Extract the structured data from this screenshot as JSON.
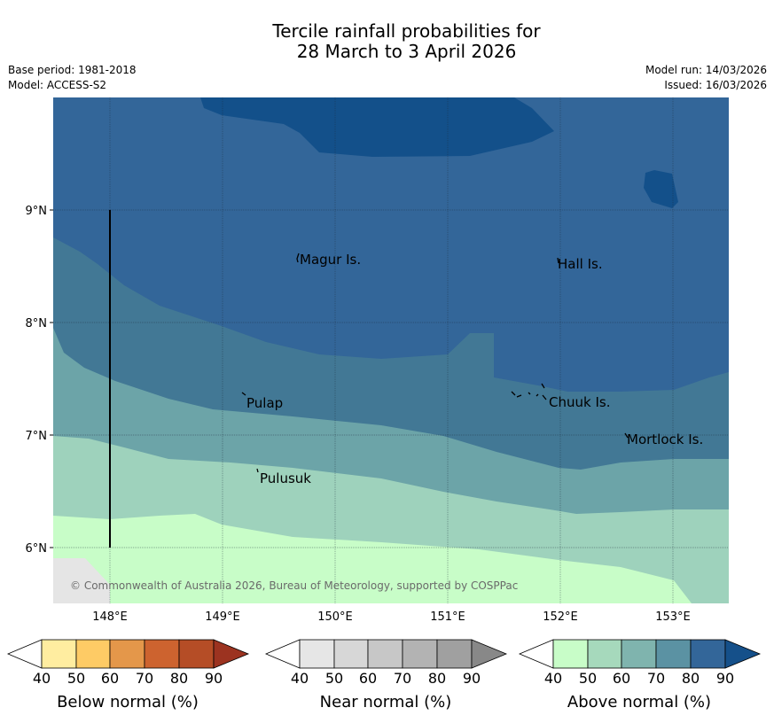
{
  "title": {
    "line1": "Tercile rainfall probabilities for",
    "line2": "28 March to 3 April 2026"
  },
  "meta": {
    "base_period": "Base period: 1981-2018",
    "model": "Model: ACCESS-S2",
    "model_run": "Model run: 14/03/2026",
    "issued": "Issued: 16/03/2026"
  },
  "map": {
    "lat_labels": [
      "9°N",
      "8°N",
      "7°N",
      "6°N"
    ],
    "lon_labels": [
      "148°E",
      "149°E",
      "150°E",
      "151°E",
      "152°E",
      "153°E"
    ],
    "places": [
      "Magur Is.",
      "Hall Is.",
      "Pulap",
      "Chuuk Is.",
      "Mortlock Is.",
      "Pulusuk"
    ],
    "copyright": "© Commonwealth of Australia 2026, Bureau of Meteorology, supported by COSPPac"
  },
  "colorbars": [
    {
      "name": "below",
      "title": "Below normal (%)",
      "ticks": [
        "40",
        "50",
        "60",
        "70",
        "80",
        "90"
      ],
      "colors": [
        "#ffffff",
        "#ffeda0",
        "#fecb65",
        "#e4974a",
        "#cd632f",
        "#b54d26",
        "#9c3320"
      ]
    },
    {
      "name": "near",
      "title": "Near normal (%)",
      "ticks": [
        "40",
        "50",
        "60",
        "70",
        "80",
        "90"
      ],
      "colors": [
        "#ffffff",
        "#e6e6e6",
        "#d7d7d7",
        "#c7c7c7",
        "#b3b3b3",
        "#a0a0a0",
        "#888888"
      ]
    },
    {
      "name": "above",
      "title": "Above normal (%)",
      "ticks": [
        "40",
        "50",
        "60",
        "70",
        "80",
        "90"
      ],
      "colors": [
        "#ffffff",
        "#c8fdc8",
        "#a6d9bc",
        "#7fb4ae",
        "#5b92a3",
        "#336699",
        "#15508a"
      ]
    }
  ],
  "legend_colors": {
    "near_grey": "#e5e5e5",
    "above_50": "#c8fdc8",
    "above_60": "#9ed2bc",
    "above_70": "#6ca4a8",
    "above_80": "#427895",
    "above_90a": "#336699",
    "above_90b": "#13508a"
  }
}
